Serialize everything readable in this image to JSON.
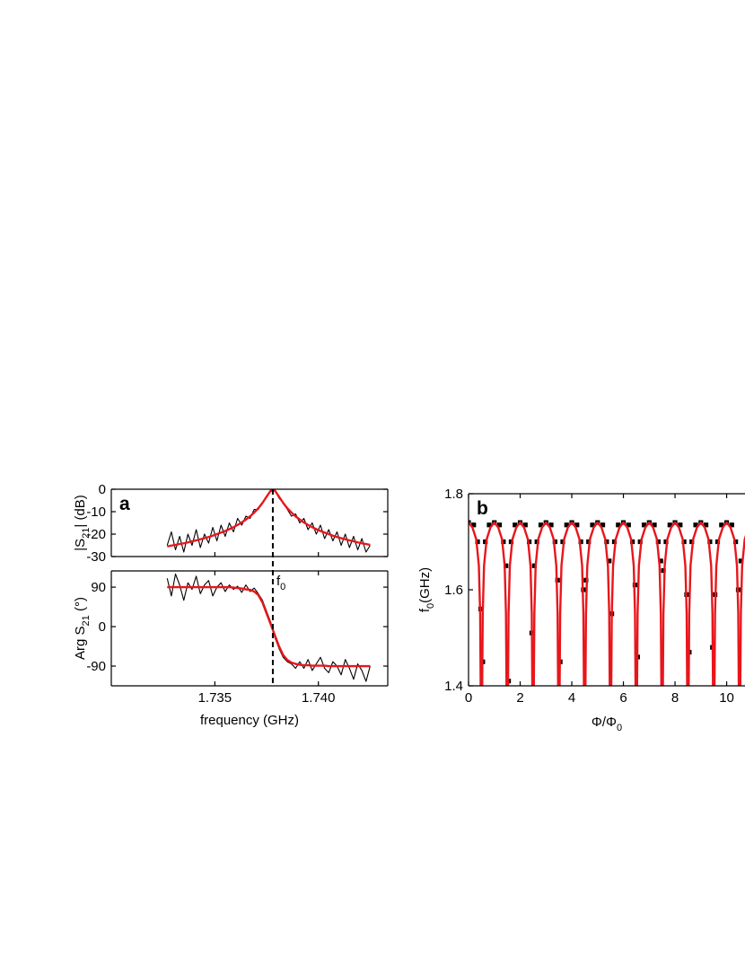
{
  "chart_data": [
    {
      "type": "line",
      "panel": "a",
      "ylabel": "|S",
      "ylabel_sub": "21",
      "ylabel_rest": "| (dB)",
      "xlim": [
        1.73,
        1.74335
      ],
      "ylim": [
        -30,
        0
      ],
      "yticks": [
        0,
        -10,
        -20,
        -30
      ],
      "x": [
        1.7327,
        1.7329,
        1.7331,
        1.7333,
        1.7335,
        1.7337,
        1.7339,
        1.7341,
        1.7343,
        1.7345,
        1.7347,
        1.7349,
        1.7351,
        1.7353,
        1.7355,
        1.7357,
        1.7359,
        1.7361,
        1.7363,
        1.7365,
        1.7367,
        1.7369,
        1.7371,
        1.7373,
        1.7375,
        1.7377,
        1.7379,
        1.7381,
        1.7383,
        1.7385,
        1.7387,
        1.7389,
        1.7391,
        1.7393,
        1.7395,
        1.7397,
        1.7399,
        1.7401,
        1.7403,
        1.7405,
        1.7407,
        1.7409,
        1.7411,
        1.7413,
        1.7415,
        1.7417,
        1.7419,
        1.7421,
        1.7423,
        1.7425
      ],
      "series": [
        {
          "color": "#000000",
          "values": [
            -25,
            -19,
            -27,
            -21,
            -28,
            -20,
            -25,
            -18,
            -26,
            -20,
            -24,
            -17,
            -23,
            -16,
            -21,
            -15,
            -19,
            -13,
            -16,
            -12,
            -13,
            -9,
            -9,
            -6,
            -3,
            -1,
            -0.5,
            -4,
            -6,
            -9,
            -12,
            -11,
            -15,
            -13,
            -18,
            -15,
            -20,
            -16,
            -22,
            -18,
            -23,
            -19,
            -25,
            -20,
            -26,
            -21,
            -27,
            -22,
            -28,
            -25
          ]
        },
        {
          "color": "#e8161b",
          "values": [
            -25.5,
            -25.1,
            -24.8,
            -24.4,
            -24.1,
            -23.7,
            -23.2,
            -22.8,
            -22.3,
            -21.8,
            -21.3,
            -20.7,
            -20,
            -19.3,
            -18.6,
            -17.8,
            -16.9,
            -15.9,
            -14.8,
            -13.5,
            -12.1,
            -10.4,
            -8.5,
            -6.1,
            -3.3,
            -0.6,
            -0.6,
            -3.3,
            -6.1,
            -8.5,
            -10.4,
            -12.1,
            -13.5,
            -14.8,
            -15.9,
            -16.9,
            -17.8,
            -18.6,
            -19.3,
            -20,
            -20.7,
            -21.3,
            -21.8,
            -22.3,
            -22.8,
            -23.2,
            -23.7,
            -24.1,
            -24.4,
            -24.8
          ]
        }
      ]
    },
    {
      "type": "line",
      "ylabel": "Arg S",
      "ylabel_sub": "21",
      "ylabel_rest": " (°)",
      "xlabel": "frequency (GHz)",
      "annotation": "f",
      "annotation_sub": "0",
      "marker_x": 1.7378,
      "xlim": [
        1.73,
        1.74335
      ],
      "ylim": [
        -135,
        127
      ],
      "yticks": [
        90,
        0,
        -90
      ],
      "xticks": [
        1.735,
        {
          "value": 1.74,
          "label": "1.740"
        }
      ],
      "x": [
        1.7327,
        1.7329,
        1.7331,
        1.7333,
        1.7335,
        1.7337,
        1.7339,
        1.7341,
        1.7343,
        1.7345,
        1.7347,
        1.7349,
        1.7351,
        1.7353,
        1.7355,
        1.7357,
        1.7359,
        1.7361,
        1.7363,
        1.7365,
        1.7367,
        1.7369,
        1.7371,
        1.7373,
        1.7375,
        1.7377,
        1.7379,
        1.7381,
        1.7383,
        1.7385,
        1.7387,
        1.7389,
        1.7391,
        1.7393,
        1.7395,
        1.7397,
        1.7399,
        1.7401,
        1.7403,
        1.7405,
        1.7407,
        1.7409,
        1.7411,
        1.7413,
        1.7415,
        1.7417,
        1.7419,
        1.7421,
        1.7423,
        1.7425
      ],
      "series": [
        {
          "color": "#000000",
          "values": [
            110,
            70,
            120,
            95,
            60,
            100,
            85,
            115,
            75,
            95,
            105,
            70,
            90,
            100,
            80,
            95,
            85,
            92,
            78,
            95,
            80,
            88,
            75,
            60,
            35,
            10,
            -25,
            -50,
            -70,
            -80,
            -85,
            -95,
            -80,
            -95,
            -75,
            -100,
            -85,
            -70,
            -95,
            -105,
            -80,
            -90,
            -110,
            -75,
            -95,
            -120,
            -85,
            -100,
            -125,
            -90
          ]
        },
        {
          "color": "#e8161b",
          "values": [
            90,
            90,
            90,
            90,
            90,
            90,
            90,
            90,
            90,
            90,
            90,
            90,
            90,
            90,
            90,
            90,
            89,
            88,
            87,
            85,
            84,
            80,
            72,
            55,
            30,
            5,
            -20,
            -45,
            -65,
            -76,
            -82,
            -85,
            -87,
            -88,
            -88,
            -89,
            -89,
            -89,
            -89,
            -90,
            -90,
            -90,
            -90,
            -90,
            -90,
            -90,
            -90,
            -90,
            -90,
            -90
          ]
        }
      ]
    },
    {
      "type": "scatter",
      "panel": "b",
      "ylabel": "f",
      "ylabel_sub": "0",
      "ylabel_rest": "(GHz)",
      "xlabel": "Φ/Φ",
      "xlabel_sub": "0",
      "xlim": [
        0,
        10.85
      ],
      "ylim": [
        1.4,
        1.8
      ],
      "yticks": [
        1.4,
        1.6,
        1.8
      ],
      "xticks": [
        0,
        2,
        4,
        6,
        8,
        10
      ],
      "series": [
        {
          "type": "scatter",
          "color": "#000000",
          "x": [
            0,
            0.2,
            0.35,
            0.47,
            0.55,
            0.65,
            0.8,
            1,
            1.2,
            1.35,
            1.45,
            1.55,
            1.65,
            1.8,
            2,
            2.2,
            2.35,
            2.45,
            2.55,
            2.65,
            2.8,
            3,
            3.2,
            3.35,
            3.45,
            3.55,
            3.65,
            3.8,
            4,
            4.2,
            4.35,
            4.45,
            4.55,
            4.65,
            4.8,
            5,
            5.2,
            5.35,
            5.45,
            5.55,
            5.65,
            5.8,
            6,
            6.2,
            6.35,
            6.45,
            6.55,
            6.65,
            6.8,
            7,
            7.2,
            7.35,
            7.45,
            7.55,
            7.65,
            7.8,
            8,
            8.2,
            8.35,
            8.45,
            8.55,
            8.65,
            8.8,
            9,
            9.2,
            9.35,
            9.45,
            9.55,
            9.65,
            9.8,
            10,
            10.2,
            10.35,
            10.45,
            10.55
          ],
          "values": [
            1.74,
            1.735,
            1.7,
            1.56,
            1.45,
            1.7,
            1.735,
            1.74,
            1.735,
            1.7,
            1.65,
            1.41,
            1.7,
            1.735,
            1.74,
            1.735,
            1.7,
            1.51,
            1.65,
            1.7,
            1.735,
            1.74,
            1.735,
            1.7,
            1.62,
            1.45,
            1.7,
            1.735,
            1.74,
            1.735,
            1.7,
            1.6,
            1.62,
            1.7,
            1.735,
            1.74,
            1.735,
            1.7,
            1.66,
            1.55,
            1.7,
            1.735,
            1.74,
            1.735,
            1.7,
            1.61,
            1.46,
            1.7,
            1.735,
            1.74,
            1.735,
            1.7,
            1.66,
            1.64,
            1.7,
            1.735,
            1.74,
            1.735,
            1.7,
            1.59,
            1.47,
            1.7,
            1.735,
            1.74,
            1.735,
            1.7,
            1.48,
            1.59,
            1.7,
            1.735,
            1.74,
            1.735,
            1.7,
            1.6,
            1.66
          ]
        },
        {
          "type": "line",
          "color": "#e8161b",
          "x": [
            0,
            0.15,
            0.3,
            0.4,
            0.45,
            0.47,
            null,
            0.53,
            0.55,
            0.6,
            0.7,
            0.85,
            1,
            1.15,
            1.3,
            1.4,
            1.45,
            1.47,
            null,
            1.53,
            1.55,
            1.6,
            1.7,
            1.85,
            2,
            2.15,
            2.3,
            2.4,
            2.45,
            2.47,
            null,
            2.53,
            2.55,
            2.6,
            2.7,
            2.85,
            3,
            3.15,
            3.3,
            3.4,
            3.45,
            3.47,
            null,
            3.53,
            3.55,
            3.6,
            3.7,
            3.85,
            4,
            4.15,
            4.3,
            4.4,
            4.45,
            4.47,
            null,
            4.53,
            4.55,
            4.6,
            4.7,
            4.85,
            5,
            5.15,
            5.3,
            5.4,
            5.45,
            5.47,
            null,
            5.53,
            5.55,
            5.6,
            5.7,
            5.85,
            6,
            6.15,
            6.3,
            6.4,
            6.45,
            6.47,
            null,
            6.53,
            6.55,
            6.6,
            6.7,
            6.85,
            7,
            7.15,
            7.3,
            7.4,
            7.45,
            7.47,
            null,
            7.53,
            7.55,
            7.6,
            7.7,
            7.85,
            8,
            8.15,
            8.3,
            8.4,
            8.45,
            8.47,
            null,
            8.53,
            8.55,
            8.6,
            8.7,
            8.85,
            9,
            9.15,
            9.3,
            9.4,
            9.45,
            9.47,
            null,
            9.53,
            9.55,
            9.6,
            9.7,
            9.85,
            10,
            10.15,
            10.3,
            10.4,
            10.45,
            10.47,
            null,
            10.53,
            10.55,
            10.6,
            10.7,
            10.85
          ],
          "values": [
            1.74,
            1.73,
            1.705,
            1.65,
            1.55,
            1.4,
            null,
            1.4,
            1.55,
            1.65,
            1.705,
            1.73,
            1.74,
            1.73,
            1.705,
            1.65,
            1.55,
            1.4,
            null,
            1.4,
            1.55,
            1.65,
            1.705,
            1.73,
            1.74,
            1.73,
            1.705,
            1.65,
            1.55,
            1.4,
            null,
            1.4,
            1.55,
            1.65,
            1.705,
            1.73,
            1.74,
            1.73,
            1.705,
            1.65,
            1.55,
            1.4,
            null,
            1.4,
            1.55,
            1.65,
            1.705,
            1.73,
            1.74,
            1.73,
            1.705,
            1.65,
            1.55,
            1.4,
            null,
            1.4,
            1.55,
            1.65,
            1.705,
            1.73,
            1.74,
            1.73,
            1.705,
            1.65,
            1.55,
            1.4,
            null,
            1.4,
            1.55,
            1.65,
            1.705,
            1.73,
            1.74,
            1.73,
            1.705,
            1.65,
            1.55,
            1.4,
            null,
            1.4,
            1.55,
            1.65,
            1.705,
            1.73,
            1.74,
            1.73,
            1.705,
            1.65,
            1.55,
            1.4,
            null,
            1.4,
            1.55,
            1.65,
            1.705,
            1.73,
            1.74,
            1.73,
            1.705,
            1.65,
            1.55,
            1.4,
            null,
            1.4,
            1.55,
            1.65,
            1.705,
            1.73,
            1.74,
            1.73,
            1.705,
            1.65,
            1.55,
            1.4,
            null,
            1.4,
            1.55,
            1.65,
            1.705,
            1.73,
            1.74,
            1.73,
            1.705,
            1.65,
            1.55,
            1.4,
            null,
            1.4,
            1.55,
            1.65,
            1.705,
            1.73
          ]
        }
      ]
    }
  ]
}
